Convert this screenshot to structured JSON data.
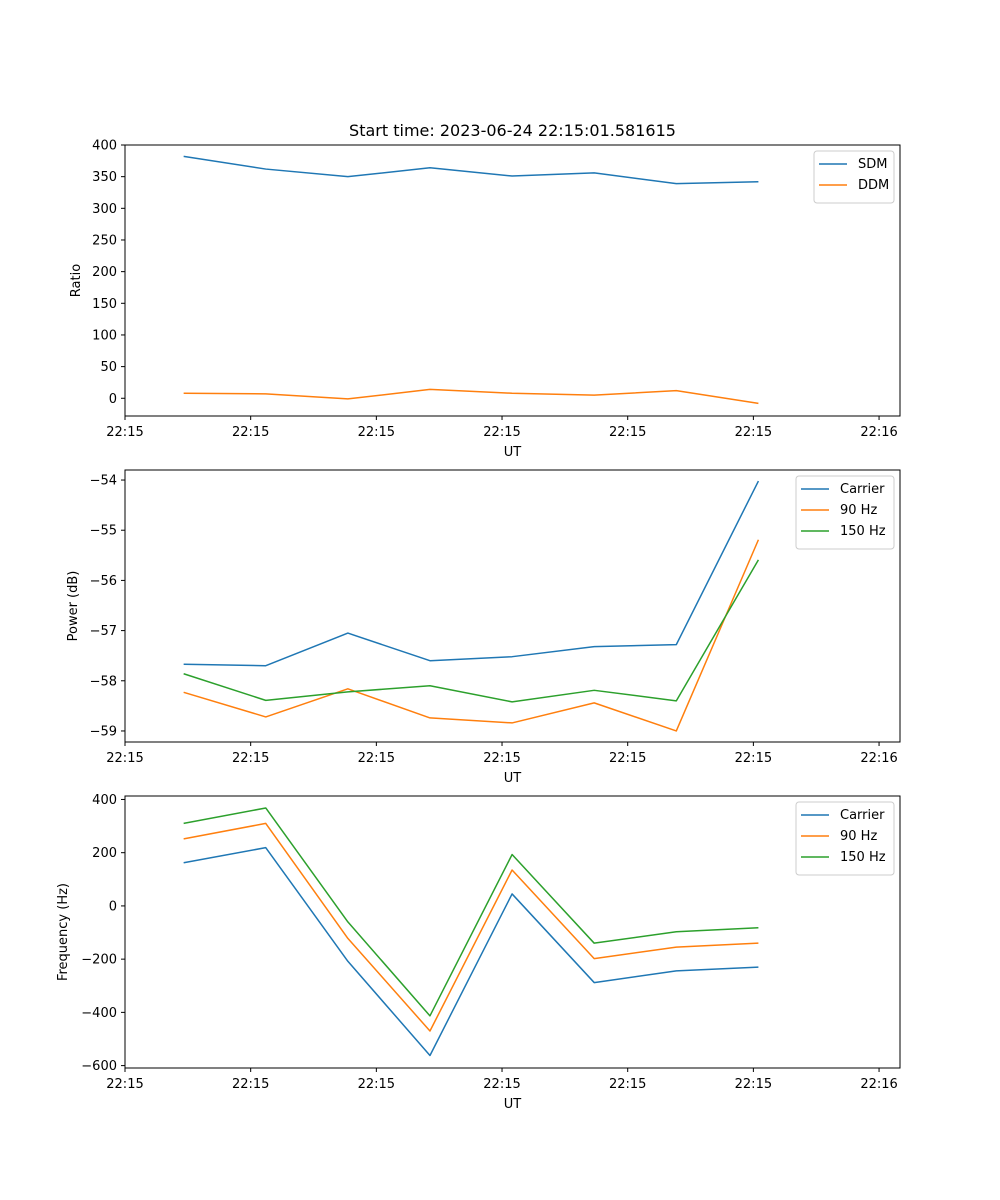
{
  "figure": {
    "title": "Start time: 2023-06-24 22:15:01.581615"
  },
  "chart_data": [
    {
      "type": "line",
      "title": "Start time: 2023-06-24 22:15:01.581615",
      "xlabel": "UT",
      "ylabel": "Ratio",
      "xlim": [
        0,
        9.25
      ],
      "ylim": [
        -28,
        400
      ],
      "x_ticks": [
        0.0,
        1.5,
        3.0,
        4.5,
        6.0,
        7.5,
        9.0
      ],
      "x_tick_labels": [
        "22:15",
        "22:15",
        "22:15",
        "22:15",
        "22:15",
        "22:15",
        "22:16"
      ],
      "y_ticks": [
        0,
        50,
        100,
        150,
        200,
        250,
        300,
        350,
        400
      ],
      "y_tick_labels": [
        "0",
        "50",
        "100",
        "150",
        "200",
        "250",
        "300",
        "350",
        "400"
      ],
      "x": [
        0.7,
        1.68,
        2.66,
        3.64,
        4.62,
        5.6,
        6.58,
        7.56
      ],
      "series": [
        {
          "name": "SDM",
          "color": "#1f77b4",
          "values": [
            382,
            362,
            350,
            364,
            351,
            356,
            339,
            342
          ]
        },
        {
          "name": "DDM",
          "color": "#ff7f0e",
          "values": [
            8,
            7,
            -1,
            14,
            8,
            5,
            12,
            -8
          ]
        }
      ],
      "legend": "upper right",
      "grid": false
    },
    {
      "type": "line",
      "title": "",
      "xlabel": "UT",
      "ylabel": "Power (dB)",
      "xlim": [
        0,
        9.25
      ],
      "ylim": [
        -59.22,
        -53.8
      ],
      "x_ticks": [
        0.0,
        1.5,
        3.0,
        4.5,
        6.0,
        7.5,
        9.0
      ],
      "x_tick_labels": [
        "22:15",
        "22:15",
        "22:15",
        "22:15",
        "22:15",
        "22:15",
        "22:16"
      ],
      "y_ticks": [
        -59,
        -58,
        -57,
        -56,
        -55,
        -54
      ],
      "y_tick_labels": [
        "−59",
        "−58",
        "−57",
        "−56",
        "−55",
        "−54"
      ],
      "x": [
        0.7,
        1.68,
        2.66,
        3.64,
        4.62,
        5.6,
        6.58,
        7.56
      ],
      "series": [
        {
          "name": "Carrier",
          "color": "#1f77b4",
          "values": [
            -57.67,
            -57.7,
            -57.05,
            -57.6,
            -57.52,
            -57.32,
            -57.28,
            -54.02
          ]
        },
        {
          "name": "90 Hz",
          "color": "#ff7f0e",
          "values": [
            -58.23,
            -58.72,
            -58.16,
            -58.74,
            -58.84,
            -58.44,
            -59.0,
            -55.19
          ]
        },
        {
          "name": "150 Hz",
          "color": "#2ca02c",
          "values": [
            -57.86,
            -58.39,
            -58.22,
            -58.1,
            -58.42,
            -58.19,
            -58.4,
            -55.59
          ]
        }
      ],
      "legend": "upper right",
      "grid": false
    },
    {
      "type": "line",
      "title": "",
      "xlabel": "UT",
      "ylabel": "Frequency (Hz)",
      "xlim": [
        0,
        9.25
      ],
      "ylim": [
        -609,
        413
      ],
      "x_ticks": [
        0.0,
        1.5,
        3.0,
        4.5,
        6.0,
        7.5,
        9.0
      ],
      "x_tick_labels": [
        "22:15",
        "22:15",
        "22:15",
        "22:15",
        "22:15",
        "22:15",
        "22:16"
      ],
      "y_ticks": [
        -600,
        -400,
        -200,
        0,
        200,
        400
      ],
      "y_tick_labels": [
        "−600",
        "−400",
        "−200",
        "0",
        "200",
        "400"
      ],
      "x": [
        0.7,
        1.68,
        2.66,
        3.64,
        4.62,
        5.6,
        6.58,
        7.56
      ],
      "series": [
        {
          "name": "Carrier",
          "color": "#1f77b4",
          "values": [
            162,
            219,
            -208,
            -562,
            45,
            -288,
            -244,
            -230
          ]
        },
        {
          "name": "90 Hz",
          "color": "#ff7f0e",
          "values": [
            252,
            310,
            -122,
            -470,
            135,
            -198,
            -155,
            -140
          ]
        },
        {
          "name": "150 Hz",
          "color": "#2ca02c",
          "values": [
            310,
            368,
            -60,
            -413,
            193,
            -140,
            -97,
            -82
          ]
        }
      ],
      "legend": "upper right",
      "grid": false
    }
  ]
}
